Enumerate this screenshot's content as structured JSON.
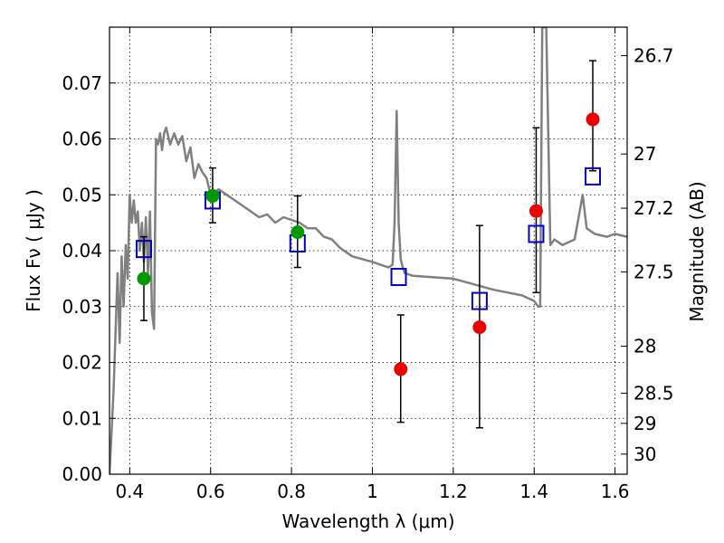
{
  "chart_data": {
    "type": "scatter",
    "xlabel": "Wavelength  λ (μm)",
    "ylabel": "Flux  Fν  ( μJy )",
    "ylabel_right": "Magnitude (AB)",
    "xlim": [
      0.35,
      1.63
    ],
    "ylim": [
      0.0,
      0.08
    ],
    "grid": true,
    "x_ticks": [
      0.4,
      0.6,
      0.8,
      1.0,
      1.2,
      1.4,
      1.6
    ],
    "x_tick_labels": [
      "0.4",
      "0.6",
      "0.8",
      "1",
      "1.2",
      "1.4",
      "1.6"
    ],
    "y_ticks": [
      0.0,
      0.01,
      0.02,
      0.03,
      0.04,
      0.05,
      0.06,
      0.07
    ],
    "y_tick_labels": [
      "0.00",
      "0.01",
      "0.02",
      "0.03",
      "0.04",
      "0.05",
      "0.06",
      "0.07"
    ],
    "right_ticks": [
      {
        "flux": 0.0749,
        "label": "26.7"
      },
      {
        "flux": 0.0573,
        "label": "27"
      },
      {
        "flux": 0.0476,
        "label": "27.2"
      },
      {
        "flux": 0.0362,
        "label": "27.5"
      },
      {
        "flux": 0.0229,
        "label": "28"
      },
      {
        "flux": 0.0145,
        "label": "28.5"
      },
      {
        "flux": 0.0091,
        "label": "29"
      },
      {
        "flux": 0.0036,
        "label": "30"
      }
    ],
    "series": [
      {
        "role": "template-spectrum",
        "style": "line",
        "color": "#808080",
        "x": [
          0.35,
          0.36,
          0.37,
          0.375,
          0.38,
          0.385,
          0.39,
          0.395,
          0.4,
          0.405,
          0.41,
          0.415,
          0.42,
          0.425,
          0.43,
          0.435,
          0.44,
          0.445,
          0.45,
          0.455,
          0.46,
          0.465,
          0.47,
          0.475,
          0.48,
          0.485,
          0.49,
          0.5,
          0.51,
          0.52,
          0.53,
          0.54,
          0.55,
          0.56,
          0.57,
          0.58,
          0.59,
          0.6,
          0.62,
          0.64,
          0.66,
          0.68,
          0.7,
          0.72,
          0.74,
          0.76,
          0.78,
          0.8,
          0.82,
          0.84,
          0.86,
          0.88,
          0.9,
          0.92,
          0.95,
          1.0,
          1.04,
          1.05,
          1.055,
          1.06,
          1.065,
          1.07,
          1.075,
          1.08,
          1.1,
          1.2,
          1.3,
          1.37,
          1.4,
          1.41,
          1.415,
          1.42,
          1.43,
          1.44,
          1.45,
          1.47,
          1.5,
          1.51,
          1.52,
          1.53,
          1.55,
          1.58,
          1.6,
          1.63
        ],
        "y": [
          0.0,
          0.015,
          0.036,
          0.0235,
          0.039,
          0.03,
          0.041,
          0.035,
          0.05,
          0.045,
          0.049,
          0.045,
          0.047,
          0.04,
          0.045,
          0.038,
          0.046,
          0.036,
          0.047,
          0.029,
          0.026,
          0.06,
          0.059,
          0.061,
          0.058,
          0.061,
          0.062,
          0.059,
          0.061,
          0.059,
          0.0605,
          0.056,
          0.0585,
          0.053,
          0.0555,
          0.054,
          0.053,
          0.05,
          0.051,
          0.05,
          0.049,
          0.048,
          0.047,
          0.046,
          0.0465,
          0.045,
          0.046,
          0.0455,
          0.045,
          0.044,
          0.044,
          0.0425,
          0.042,
          0.0405,
          0.039,
          0.038,
          0.037,
          0.0375,
          0.045,
          0.065,
          0.045,
          0.0385,
          0.037,
          0.036,
          0.0355,
          0.035,
          0.033,
          0.032,
          0.031,
          0.03,
          0.03,
          0.08,
          0.08,
          0.041,
          0.042,
          0.041,
          0.042,
          0.046,
          0.05,
          0.044,
          0.043,
          0.0425,
          0.043,
          0.0425
        ]
      },
      {
        "role": "model-photometry",
        "style": "open-square",
        "color": "#0000cc",
        "x": [
          0.435,
          0.605,
          0.815,
          1.065,
          1.265,
          1.405,
          1.545
        ],
        "y": [
          0.0403,
          0.049,
          0.0413,
          0.0353,
          0.031,
          0.043,
          0.0533
        ]
      },
      {
        "role": "observed-detections",
        "style": "filled-circle",
        "color": "#009900",
        "x": [
          0.435,
          0.605,
          0.815
        ],
        "y": [
          0.035,
          0.0498,
          0.0433
        ],
        "yerr_low": [
          0.0275,
          0.045,
          0.037
        ],
        "yerr_high": [
          0.0425,
          0.0548,
          0.0498
        ]
      },
      {
        "role": "observed-upper",
        "style": "filled-circle",
        "color": "#ee0000",
        "x": [
          1.07,
          1.265,
          1.405,
          1.545
        ],
        "y": [
          0.0188,
          0.0263,
          0.0471,
          0.0635
        ],
        "yerr_low": [
          0.0093,
          0.0083,
          0.0325,
          0.0543
        ],
        "yerr_high": [
          0.0285,
          0.0445,
          0.062,
          0.074
        ]
      }
    ]
  }
}
